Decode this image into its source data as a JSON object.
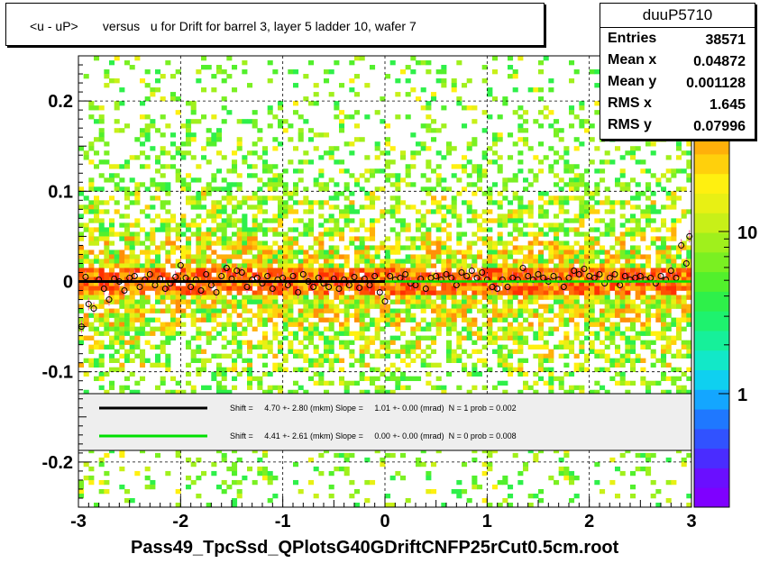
{
  "chart_data": {
    "type": "heatmap",
    "title": "<u - uP>       versus   u for Drift for barrel 3, layer 5 ladder 10, wafer 7",
    "xlabel": "Pass49_TpcSsd_QPlotsG40GDriftCNFP25rCut0.5cm.root",
    "ylabel": "",
    "xlim": [
      -3,
      3
    ],
    "ylim": [
      -0.25,
      0.25
    ],
    "x_ticks": [
      "-3",
      "-2",
      "-1",
      "0",
      "1",
      "2",
      "3"
    ],
    "y_ticks": [
      "-0.2",
      "-0.1",
      "0",
      "0.1",
      "0.2"
    ],
    "z_scale": "log",
    "z_ticks": [
      "1",
      "10"
    ],
    "grid": true,
    "stats": {
      "name": "duuP5710",
      "rows": [
        {
          "label": "Entries",
          "value": "38571"
        },
        {
          "label": "Mean x",
          "value": "0.04872"
        },
        {
          "label": "Mean y",
          "value": "0.001128"
        },
        {
          "label": "RMS x",
          "value": "1.645"
        },
        {
          "label": "RMS y",
          "value": "0.07996"
        }
      ]
    },
    "fits": [
      {
        "color": "#000000",
        "text": "Shift =     4.70 +- 2.80 (mkm) Slope =     1.01 +- 0.00 (mrad)  N = 1 prob = 0.002",
        "x_range": [
          -3,
          0
        ],
        "y": 0.0
      },
      {
        "color": "#00e000",
        "text": "Shift =     4.41 +- 2.61 (mkm) Slope =     0.00 +- 0.00 (mrad)  N = 0 prob = 0.008",
        "x_range": [
          0,
          3
        ],
        "y": 0.0
      }
    ],
    "profile_points": [
      {
        "x": -2.97,
        "y": -0.05
      },
      {
        "x": -2.93,
        "y": 0.005
      },
      {
        "x": -2.9,
        "y": -0.025
      },
      {
        "x": -2.85,
        "y": -0.03
      },
      {
        "x": -2.8,
        "y": 0.002
      },
      {
        "x": -2.75,
        "y": -0.008
      },
      {
        "x": -2.7,
        "y": -0.02
      },
      {
        "x": -2.65,
        "y": 0.003
      },
      {
        "x": -2.6,
        "y": 0.0
      },
      {
        "x": -2.55,
        "y": -0.01
      },
      {
        "x": -2.5,
        "y": 0.004
      },
      {
        "x": -2.45,
        "y": 0.006
      },
      {
        "x": -2.4,
        "y": -0.006
      },
      {
        "x": -2.35,
        "y": 0.002
      },
      {
        "x": -2.3,
        "y": 0.008
      },
      {
        "x": -2.25,
        "y": -0.004
      },
      {
        "x": -2.2,
        "y": 0.003
      },
      {
        "x": -2.15,
        "y": -0.008
      },
      {
        "x": -2.1,
        "y": -0.002
      },
      {
        "x": -2.05,
        "y": 0.005
      },
      {
        "x": -2.0,
        "y": 0.018
      },
      {
        "x": -1.95,
        "y": 0.004
      },
      {
        "x": -1.9,
        "y": -0.006
      },
      {
        "x": -1.85,
        "y": 0.002
      },
      {
        "x": -1.8,
        "y": -0.01
      },
      {
        "x": -1.75,
        "y": 0.008
      },
      {
        "x": -1.7,
        "y": -0.004
      },
      {
        "x": -1.65,
        "y": -0.012
      },
      {
        "x": -1.6,
        "y": 0.006
      },
      {
        "x": -1.55,
        "y": 0.015
      },
      {
        "x": -1.5,
        "y": 0.003
      },
      {
        "x": -1.45,
        "y": 0.012
      },
      {
        "x": -1.4,
        "y": 0.01
      },
      {
        "x": -1.35,
        "y": -0.006
      },
      {
        "x": -1.3,
        "y": 0.002
      },
      {
        "x": -1.25,
        "y": 0.004
      },
      {
        "x": -1.2,
        "y": -0.002
      },
      {
        "x": -1.15,
        "y": 0.006
      },
      {
        "x": -1.1,
        "y": -0.008
      },
      {
        "x": -1.05,
        "y": 0.002
      },
      {
        "x": -1.0,
        "y": 0.004
      },
      {
        "x": -0.95,
        "y": -0.004
      },
      {
        "x": -0.9,
        "y": 0.006
      },
      {
        "x": -0.85,
        "y": -0.012
      },
      {
        "x": -0.8,
        "y": 0.008
      },
      {
        "x": -0.75,
        "y": 0.0
      },
      {
        "x": -0.7,
        "y": -0.006
      },
      {
        "x": -0.65,
        "y": 0.004
      },
      {
        "x": -0.6,
        "y": -0.002
      },
      {
        "x": -0.55,
        "y": -0.006
      },
      {
        "x": -0.5,
        "y": 0.003
      },
      {
        "x": -0.45,
        "y": -0.008
      },
      {
        "x": -0.4,
        "y": 0.002
      },
      {
        "x": -0.35,
        "y": -0.004
      },
      {
        "x": -0.3,
        "y": 0.005
      },
      {
        "x": -0.25,
        "y": -0.007
      },
      {
        "x": -0.2,
        "y": 0.003
      },
      {
        "x": -0.15,
        "y": -0.004
      },
      {
        "x": -0.1,
        "y": 0.006
      },
      {
        "x": -0.05,
        "y": -0.012
      },
      {
        "x": 0.0,
        "y": -0.022
      },
      {
        "x": 0.05,
        "y": 0.006
      },
      {
        "x": 0.1,
        "y": 0.002
      },
      {
        "x": 0.15,
        "y": 0.004
      },
      {
        "x": 0.2,
        "y": 0.008
      },
      {
        "x": 0.25,
        "y": -0.002
      },
      {
        "x": 0.3,
        "y": -0.004
      },
      {
        "x": 0.35,
        "y": 0.003
      },
      {
        "x": 0.4,
        "y": -0.008
      },
      {
        "x": 0.45,
        "y": 0.004
      },
      {
        "x": 0.5,
        "y": 0.006
      },
      {
        "x": 0.55,
        "y": 0.002
      },
      {
        "x": 0.6,
        "y": 0.008
      },
      {
        "x": 0.65,
        "y": 0.004
      },
      {
        "x": 0.7,
        "y": -0.004
      },
      {
        "x": 0.75,
        "y": 0.01
      },
      {
        "x": 0.8,
        "y": 0.006
      },
      {
        "x": 0.85,
        "y": 0.012
      },
      {
        "x": 0.9,
        "y": 0.004
      },
      {
        "x": 0.95,
        "y": 0.01
      },
      {
        "x": 1.0,
        "y": 0.002
      },
      {
        "x": 1.05,
        "y": -0.006
      },
      {
        "x": 1.1,
        "y": -0.008
      },
      {
        "x": 1.15,
        "y": 0.002
      },
      {
        "x": 1.2,
        "y": -0.006
      },
      {
        "x": 1.25,
        "y": 0.004
      },
      {
        "x": 1.3,
        "y": 0.002
      },
      {
        "x": 1.35,
        "y": 0.015
      },
      {
        "x": 1.4,
        "y": 0.006
      },
      {
        "x": 1.45,
        "y": 0.002
      },
      {
        "x": 1.5,
        "y": 0.008
      },
      {
        "x": 1.55,
        "y": 0.004
      },
      {
        "x": 1.6,
        "y": 0.0
      },
      {
        "x": 1.65,
        "y": 0.006
      },
      {
        "x": 1.7,
        "y": 0.002
      },
      {
        "x": 1.75,
        "y": -0.006
      },
      {
        "x": 1.8,
        "y": 0.004
      },
      {
        "x": 1.85,
        "y": 0.012
      },
      {
        "x": 1.9,
        "y": 0.008
      },
      {
        "x": 1.95,
        "y": 0.014
      },
      {
        "x": 2.0,
        "y": 0.006
      },
      {
        "x": 2.05,
        "y": 0.004
      },
      {
        "x": 2.1,
        "y": 0.008
      },
      {
        "x": 2.15,
        "y": -0.002
      },
      {
        "x": 2.2,
        "y": 0.004
      },
      {
        "x": 2.25,
        "y": 0.008
      },
      {
        "x": 2.3,
        "y": -0.004
      },
      {
        "x": 2.35,
        "y": 0.006
      },
      {
        "x": 2.4,
        "y": 0.002
      },
      {
        "x": 2.45,
        "y": 0.004
      },
      {
        "x": 2.5,
        "y": 0.006
      },
      {
        "x": 2.55,
        "y": 0.002
      },
      {
        "x": 2.6,
        "y": 0.004
      },
      {
        "x": 2.65,
        "y": -0.002
      },
      {
        "x": 2.7,
        "y": 0.006
      },
      {
        "x": 2.75,
        "y": 0.002
      },
      {
        "x": 2.8,
        "y": 0.012
      },
      {
        "x": 2.85,
        "y": 0.004
      },
      {
        "x": 2.9,
        "y": 0.04
      },
      {
        "x": 2.95,
        "y": 0.02
      },
      {
        "x": 2.98,
        "y": 0.05
      }
    ]
  },
  "palette_colors": [
    "#7f00ff",
    "#6a0fff",
    "#4a2cff",
    "#3152ff",
    "#1f78ff",
    "#14a6ff",
    "#0fd0f0",
    "#12e8c8",
    "#16f09a",
    "#1ef26e",
    "#2ef04a",
    "#52f02c",
    "#7af022",
    "#a0f01c",
    "#c8f018",
    "#e8f014",
    "#fff010",
    "#ffd00c",
    "#ffb00a",
    "#ff9008",
    "#ff7006",
    "#ff5004",
    "#ff3002"
  ]
}
